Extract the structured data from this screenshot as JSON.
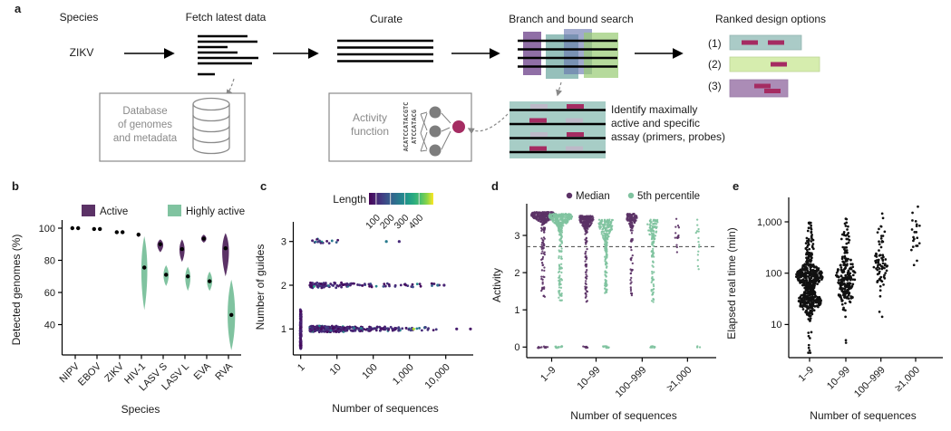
{
  "figure": {
    "panel_a": {
      "label": "a",
      "species_heading": "Species",
      "species_value": "ZIKV",
      "fetch_label": "Fetch latest data",
      "curate_label": "Curate",
      "search_label": "Branch and bound search",
      "ranked_label": "Ranked design options",
      "rank1": "(1)",
      "rank2": "(2)",
      "rank3": "(3)",
      "database_lines": [
        "Database",
        "of genomes",
        "and metadata"
      ],
      "activity_lines": [
        "Activity",
        "function"
      ],
      "seq_line1": "ACATCCATACGTC",
      "seq_line2": "ATCCATACG",
      "identify_lines": [
        "Identify maximally",
        "active and specific",
        "assay (primers, probes)"
      ],
      "colors": {
        "magenta": "#a52c62",
        "gray_bar": "#bdb9c8",
        "teal_panel": "#a7cdc6",
        "rank1_fill": "#aacbc7",
        "rank2_fill": "#d6edae",
        "rank3_fill": "#ab8cb6"
      }
    }
  },
  "chart_data": [
    {
      "panel_label": "b",
      "type": "violin",
      "xlabel": "Species",
      "ylabel": "Detected genomes (%)",
      "yticks": [
        40,
        60,
        80,
        100
      ],
      "ylim": [
        22,
        104
      ],
      "categories": [
        "NIPV",
        "EBOV",
        "ZIKV",
        "HIV-1",
        "LASV S",
        "LASV L",
        "EVA",
        "RVA"
      ],
      "legend": [
        {
          "label": "Active",
          "color": "#5b3266"
        },
        {
          "label": "Highly active",
          "color": "#80c3a0"
        }
      ],
      "series": [
        {
          "name": "Active",
          "color": "#5b3266",
          "medians": [
            100,
            99.5,
            97.5,
            96,
            90,
            87,
            93.5,
            87.5
          ],
          "ranges": [
            [
              100,
              100,
              0
            ],
            [
              99.5,
              99.5,
              0
            ],
            [
              97.5,
              97.5,
              0
            ],
            [
              94.5,
              97,
              4
            ],
            [
              85,
              93,
              8
            ],
            [
              79,
              93,
              7
            ],
            [
              91,
              96,
              7
            ],
            [
              70,
              97,
              9
            ]
          ]
        },
        {
          "name": "Highly active",
          "color": "#80c3a0",
          "medians": [
            100,
            99.5,
            97.5,
            75.5,
            71,
            70,
            67,
            46
          ],
          "ranges": [
            [
              100,
              100,
              0
            ],
            [
              99.5,
              99.5,
              0
            ],
            [
              97.5,
              97.5,
              0
            ],
            [
              49,
              95,
              8
            ],
            [
              64,
              77,
              7
            ],
            [
              61,
              76,
              7
            ],
            [
              61,
              73,
              7
            ],
            [
              24,
              68,
              10
            ]
          ]
        }
      ]
    },
    {
      "panel_label": "c",
      "type": "scatter",
      "xlabel": "Number of sequences",
      "ylabel": "Number of guides",
      "x_scale": "log",
      "xticks": [
        1,
        10,
        100,
        1000,
        10000
      ],
      "xtick_labels": [
        "1",
        "10",
        "100",
        "1,000",
        "10,000"
      ],
      "yticks": [
        1,
        2,
        3
      ],
      "colorbar": {
        "label": "Length",
        "ticks": [
          100,
          200,
          300,
          400
        ],
        "domain": [
          50,
          500
        ],
        "palette": "viridis"
      },
      "clusters": [
        {
          "guides": 1,
          "x": 1,
          "n": 150,
          "y_jitter": 0.45,
          "x_jitter": 0.03,
          "length": [
            60,
            110
          ],
          "high_frac": 0.0,
          "length_high": [
            120,
            200
          ]
        },
        {
          "guides": 1,
          "x_log": [
            0.25,
            1.2
          ],
          "n": 230,
          "y_jitter": 0.07,
          "length": [
            60,
            130
          ],
          "high_frac": 0.1,
          "length_high": [
            140,
            380
          ]
        },
        {
          "guides": 1,
          "x_log": [
            1.2,
            2.6
          ],
          "n": 110,
          "y_jitter": 0.05,
          "length": [
            60,
            140
          ],
          "high_frac": 0.1,
          "length_high": [
            150,
            300
          ]
        },
        {
          "guides": 1,
          "x_log": [
            2.6,
            3.8
          ],
          "n": 30,
          "y_jitter": 0.04,
          "length": [
            70,
            150
          ],
          "high_frac": 0.15,
          "length_high": [
            200,
            300
          ]
        },
        {
          "guides": 2,
          "x_log": [
            0.25,
            1.35
          ],
          "n": 75,
          "y_jitter": 0.06,
          "length": [
            60,
            130
          ],
          "high_frac": 0.15,
          "length_high": [
            150,
            350
          ]
        },
        {
          "guides": 2,
          "x_log": [
            1.35,
            3.85
          ],
          "n": 42,
          "y_jitter": 0.04,
          "length": [
            60,
            140
          ],
          "high_frac": 0.2,
          "length_high": [
            150,
            300
          ]
        },
        {
          "guides": 3,
          "x_log": [
            0.3,
            1.15
          ],
          "n": 17,
          "y_jitter": 0.06,
          "length": [
            60,
            140
          ],
          "high_frac": 0.25,
          "length_high": [
            200,
            320
          ]
        }
      ],
      "special_points": [
        {
          "x": 1300,
          "guides": 1,
          "length": 470
        },
        {
          "x": 48000,
          "guides": 1,
          "length": 80
        },
        {
          "x": 20000,
          "guides": 1,
          "length": 90
        },
        {
          "x": 9000,
          "guides": 2,
          "length": 100
        },
        {
          "x": 6000,
          "guides": 2,
          "length": 230
        },
        {
          "x": 230,
          "guides": 3,
          "length": 260
        },
        {
          "x": 520,
          "guides": 3,
          "length": 110
        }
      ]
    },
    {
      "panel_label": "d",
      "type": "strip",
      "xlabel": "Number of sequences",
      "ylabel": "Activity",
      "yticks": [
        0,
        1,
        2,
        3
      ],
      "ylim": [
        -0.2,
        3.8
      ],
      "dashed_line": 2.7,
      "categories": [
        "1–9",
        "10–99",
        "100–999",
        "≥1,000"
      ],
      "legend": [
        {
          "label": "Median",
          "color": "#5b3266"
        },
        {
          "label": "5th percentile",
          "color": "#80c3a0"
        }
      ],
      "series": [
        {
          "name": "Median",
          "color": "#5b3266",
          "groups": [
            {
              "n": 350,
              "mode": 3.55,
              "sd": 0.1,
              "mode_frac": 0.8,
              "tail": [
                1.3,
                3.3
              ],
              "zeros": 10,
              "width": 13
            },
            {
              "n": 260,
              "mode": 3.45,
              "sd": 0.13,
              "mode_frac": 0.75,
              "tail": [
                1.2,
                3.3
              ],
              "zeros": 7,
              "width": 8
            },
            {
              "n": 140,
              "mode": 3.5,
              "sd": 0.12,
              "mode_frac": 0.75,
              "tail": [
                1.35,
                3.3
              ],
              "zeros": 0,
              "width": 6
            },
            {
              "n": 14,
              "mode": 3.2,
              "sd": 0.3,
              "mode_frac": 0.5,
              "tail": [
                2.55,
                3.45
              ],
              "zeros": 0,
              "width": 3
            }
          ]
        },
        {
          "name": "5th percentile",
          "color": "#80c3a0",
          "groups": [
            {
              "n": 330,
              "mode": 3.5,
              "sd": 0.12,
              "mode_frac": 0.75,
              "tail": [
                1.25,
                3.3
              ],
              "zeros": 14,
              "width": 13
            },
            {
              "n": 240,
              "mode": 3.35,
              "sd": 0.25,
              "mode_frac": 0.6,
              "tail": [
                1.45,
                3.2
              ],
              "zeros": 14,
              "width": 8
            },
            {
              "n": 130,
              "mode": 3.35,
              "sd": 0.25,
              "mode_frac": 0.6,
              "tail": [
                1.2,
                3.2
              ],
              "zeros": 10,
              "width": 6
            },
            {
              "n": 16,
              "mode": 3.1,
              "sd": 0.4,
              "mode_frac": 0.5,
              "tail": [
                1.6,
                3.5
              ],
              "zeros": 4,
              "width": 3
            }
          ]
        }
      ]
    },
    {
      "panel_label": "e",
      "type": "swarm",
      "xlabel": "Number of sequences",
      "ylabel": "Elapsed real time (min)",
      "y_scale": "log",
      "yticks": [
        10,
        100,
        1000
      ],
      "ytick_labels": [
        "10",
        "100",
        "1,000"
      ],
      "categories": [
        "1–9",
        "10–99",
        "100–999",
        "≥1,000"
      ],
      "point_color": "#111111",
      "clusters": [
        {
          "cat": 0,
          "n": 280,
          "mode": 1.95,
          "sd": 0.16,
          "min": 1.6,
          "max": 2.35,
          "width": 14
        },
        {
          "cat": 0,
          "n": 230,
          "mode": 1.45,
          "sd": 0.14,
          "min": 1.05,
          "max": 1.7,
          "width": 12
        },
        {
          "cat": 0,
          "n": 55,
          "mode": 2.5,
          "sd": 0.25,
          "min": 2.3,
          "max": 2.98,
          "width": 4
        },
        {
          "cat": 0,
          "n": 9,
          "mode": 0.7,
          "sd": 0.2,
          "min": 0.45,
          "max": 1.0,
          "width": 2
        },
        {
          "cat": 1,
          "n": 150,
          "mode": 1.95,
          "sd": 0.25,
          "min": 1.2,
          "max": 2.5,
          "width": 10
        },
        {
          "cat": 1,
          "n": 60,
          "mode": 1.6,
          "sd": 0.2,
          "min": 1.15,
          "max": 1.9,
          "width": 8
        },
        {
          "cat": 1,
          "n": 25,
          "mode": 2.65,
          "sd": 0.2,
          "min": 2.4,
          "max": 3.06,
          "width": 4
        },
        {
          "cat": 1,
          "n": 2,
          "mode": 0.62,
          "sd": 0.05,
          "min": 0.55,
          "max": 0.7,
          "width": 1
        },
        {
          "cat": 2,
          "n": 60,
          "mode": 2.15,
          "sd": 0.25,
          "min": 1.55,
          "max": 2.75,
          "width": 8
        },
        {
          "cat": 2,
          "n": 12,
          "mode": 2.85,
          "sd": 0.2,
          "min": 2.6,
          "max": 3.28,
          "width": 4
        },
        {
          "cat": 2,
          "n": 2,
          "mode": 1.25,
          "sd": 0.1,
          "min": 1.15,
          "max": 1.35,
          "width": 1
        },
        {
          "cat": 3,
          "n": 12,
          "mode": 2.45,
          "sd": 0.2,
          "min": 2.0,
          "max": 2.8,
          "width": 5
        },
        {
          "cat": 3,
          "n": 9,
          "mode": 3.0,
          "sd": 0.25,
          "min": 2.7,
          "max": 3.37,
          "width": 4
        }
      ]
    }
  ]
}
